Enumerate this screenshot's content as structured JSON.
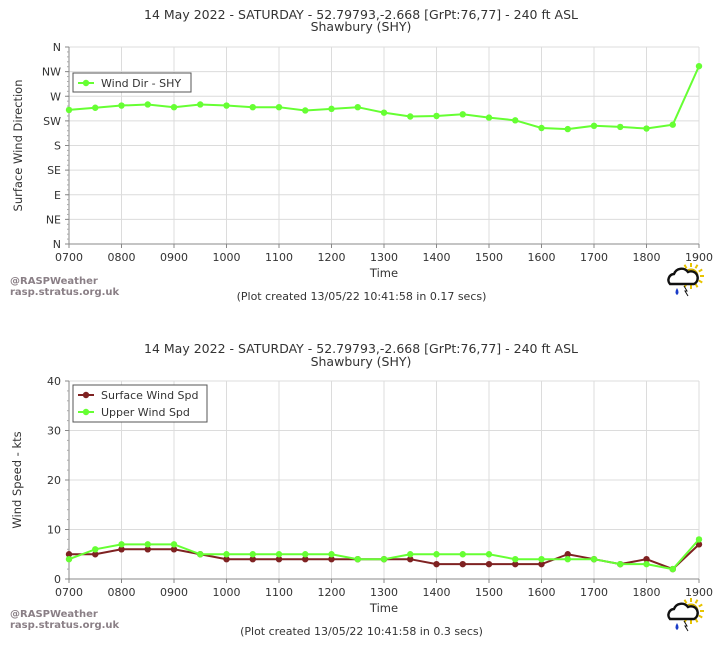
{
  "chart_data": [
    {
      "type": "line",
      "title": "14 May 2022 - SATURDAY - 52.79793,-2.668 [GrPt:76,77]  - 240 ft ASL",
      "subtitle": "Shawbury (SHY)",
      "xlabel": "Time",
      "ylabel": "Surface Wind Direction",
      "x_ticks": [
        "0700",
        "0800",
        "0900",
        "1000",
        "1100",
        "1200",
        "1300",
        "1400",
        "1500",
        "1600",
        "1700",
        "1800",
        "1900"
      ],
      "x_range": [
        700,
        1900
      ],
      "y_ticks": [
        "N",
        "NE",
        "E",
        "SE",
        "S",
        "SW",
        "W",
        "NW",
        "N"
      ],
      "ylim": [
        0,
        360
      ],
      "grid": true,
      "legend_position": "top-left",
      "x": [
        700,
        750,
        800,
        850,
        900,
        950,
        1000,
        1050,
        1100,
        1150,
        1200,
        1250,
        1300,
        1350,
        1400,
        1450,
        1500,
        1550,
        1600,
        1650,
        1700,
        1750,
        1800,
        1850,
        1900
      ],
      "series": [
        {
          "name": "Wind Dir - SHY",
          "color": "#66ff33",
          "values": [
            245,
            249,
            253,
            255,
            250,
            255,
            253,
            250,
            250,
            244,
            247,
            250,
            240,
            233,
            234,
            237,
            231,
            226,
            212,
            210,
            216,
            214,
            211,
            218,
            325
          ]
        }
      ]
    },
    {
      "type": "line",
      "title": "14 May 2022 - SATURDAY - 52.79793,-2.668 [GrPt:76,77]  - 240 ft ASL",
      "subtitle": "Shawbury (SHY)",
      "xlabel": "Time",
      "ylabel": "Wind Speed - kts",
      "x_ticks": [
        "0700",
        "0800",
        "0900",
        "1000",
        "1100",
        "1200",
        "1300",
        "1400",
        "1500",
        "1600",
        "1700",
        "1800",
        "1900"
      ],
      "x_range": [
        700,
        1900
      ],
      "y_ticks": [
        "0",
        "10",
        "20",
        "30",
        "40"
      ],
      "ylim": [
        0,
        40
      ],
      "grid": true,
      "legend_position": "top-left",
      "x": [
        700,
        750,
        800,
        850,
        900,
        950,
        1000,
        1050,
        1100,
        1150,
        1200,
        1250,
        1300,
        1350,
        1400,
        1450,
        1500,
        1550,
        1600,
        1650,
        1700,
        1750,
        1800,
        1850,
        1900
      ],
      "series": [
        {
          "name": "Surface Wind Spd",
          "color": "#7f2222",
          "values": [
            5,
            5,
            6,
            6,
            6,
            5,
            4,
            4,
            4,
            4,
            4,
            4,
            4,
            4,
            3,
            3,
            3,
            3,
            3,
            5,
            4,
            3,
            4,
            2,
            7
          ]
        },
        {
          "name": "Upper Wind Spd",
          "color": "#66ff33",
          "values": [
            4,
            6,
            7,
            7,
            7,
            5,
            5,
            5,
            5,
            5,
            5,
            4,
            4,
            5,
            5,
            5,
            5,
            4,
            4,
            4,
            4,
            3,
            3,
            2,
            8
          ]
        }
      ]
    }
  ],
  "branding": {
    "line1": "@RASPWeather",
    "line2": "rasp.stratus.org.uk"
  },
  "plots": [
    {
      "created": "(Plot created 13/05/22 10:41:58 in 0.17 secs)"
    },
    {
      "created": "(Plot created 13/05/22 10:41:58 in 0.3 secs)"
    }
  ],
  "icons": {
    "weather": "rain-cloud-sun-icon"
  }
}
